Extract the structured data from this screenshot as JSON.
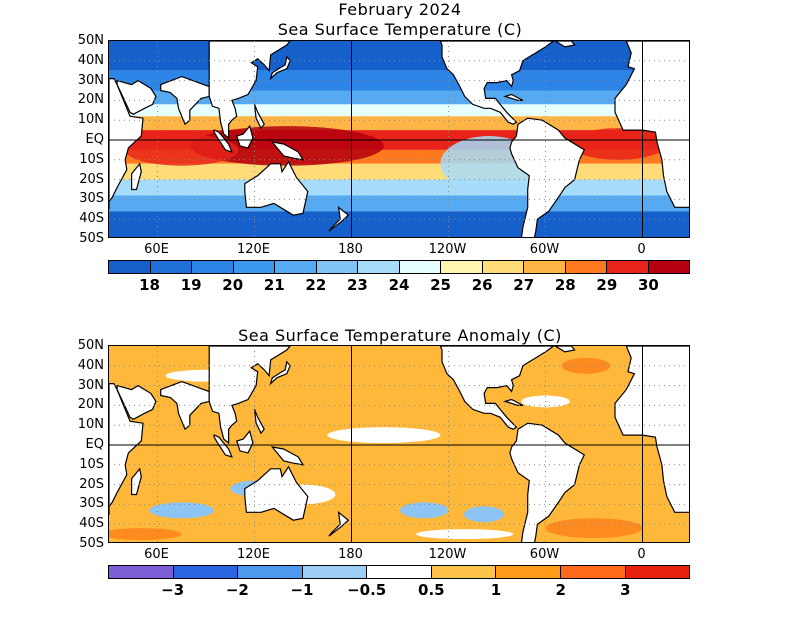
{
  "top": {
    "title_line1": "February 2024",
    "title_line2": "Sea Surface Temperature (C)",
    "lat_labels": [
      "50N",
      "40N",
      "30N",
      "20N",
      "10N",
      "EQ",
      "10S",
      "20S",
      "30S",
      "40S",
      "50S"
    ],
    "lon_labels": [
      "60E",
      "120E",
      "180",
      "120W",
      "60W",
      "0"
    ],
    "colorbar_colors": [
      "#1660cc",
      "#1f70d8",
      "#2c84e6",
      "#3c98ee",
      "#56aaf2",
      "#80c4f6",
      "#a6dcfa",
      "#e6ffff",
      "#fff4b0",
      "#ffdc78",
      "#ffb446",
      "#ff7a1e",
      "#e8241a",
      "#b4000e"
    ],
    "colorbar_labels": [
      "18",
      "19",
      "20",
      "21",
      "22",
      "23",
      "24",
      "25",
      "26",
      "27",
      "28",
      "29",
      "30"
    ]
  },
  "bottom": {
    "title": "Sea Surface Temperature Anomaly (C)",
    "lat_labels": [
      "50N",
      "40N",
      "30N",
      "20N",
      "10N",
      "EQ",
      "10S",
      "20S",
      "30S",
      "40S",
      "50S"
    ],
    "lon_labels": [
      "60E",
      "120E",
      "180",
      "120W",
      "60W",
      "0"
    ],
    "colorbar_colors": [
      "#7c5fd6",
      "#2a66e0",
      "#4e98ee",
      "#9ccdf6",
      "#ffffff",
      "#ffc24a",
      "#ff9a1a",
      "#ff6a1a",
      "#e6220e"
    ],
    "colorbar_labels": [
      "−3",
      "−2",
      "−1",
      "−0.5",
      "0.5",
      "1",
      "2",
      "3"
    ]
  },
  "map_data": {
    "lon_range": [
      30,
      390
    ],
    "lat_range": [
      -50,
      50
    ],
    "sst_ramp": [
      "#1660cc",
      "#2c84e6",
      "#56aaf2",
      "#a6dcfa",
      "#e6ffff",
      "#fff4b0",
      "#ffdc78",
      "#ffb446",
      "#ff7a1e",
      "#e8241a",
      "#b4000e"
    ],
    "anom_positive": "#ffb83a",
    "anom_negative": "#8cc4f4",
    "land_color": "#ffffff",
    "coast_color": "#000000"
  }
}
